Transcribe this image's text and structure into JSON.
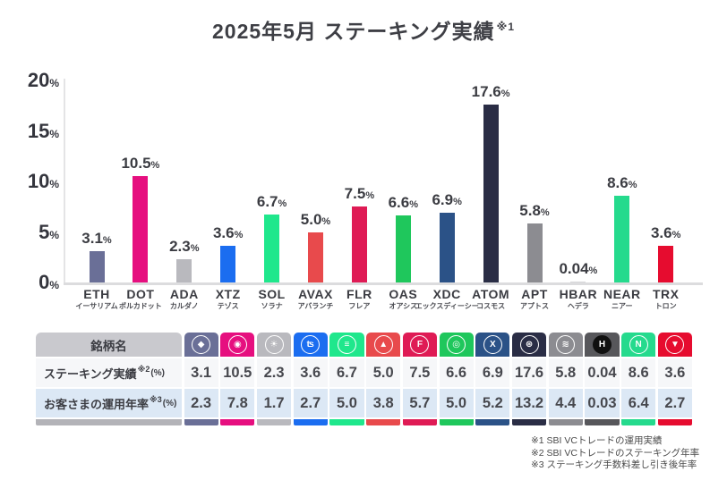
{
  "title": {
    "text": "2025年5月 ステーキング実績",
    "sup": "※1"
  },
  "chart_data": {
    "type": "bar",
    "title": "2025年5月 ステーキング実績※1",
    "unit": "%",
    "ylim": [
      0,
      20
    ],
    "yticks": [
      20,
      15,
      10,
      5,
      0
    ],
    "grid": false,
    "legend": "none",
    "categories": [
      "ETH",
      "DOT",
      "ADA",
      "XTZ",
      "SOL",
      "AVAX",
      "FLR",
      "OAS",
      "XDC",
      "ATOM",
      "APT",
      "HBAR",
      "NEAR",
      "TRX"
    ],
    "categories_ja": [
      "イーサリアム",
      "ポルカドット",
      "カルダノ",
      "テゾス",
      "ソラナ",
      "アバランチ",
      "フレア",
      "オアシス",
      "エックスディーシー",
      "コスモス",
      "アプトス",
      "ヘデラ",
      "ニアー",
      "トロン"
    ],
    "values": [
      3.1,
      10.5,
      2.3,
      3.6,
      6.7,
      5.0,
      7.5,
      6.6,
      6.9,
      17.6,
      5.8,
      0.04,
      8.6,
      3.6
    ],
    "value_labels": [
      "3.1",
      "10.5",
      "2.3",
      "3.6",
      "6.7",
      "5.0",
      "7.5",
      "6.6",
      "6.9",
      "17.6",
      "5.8",
      "0.04",
      "8.6",
      "3.6"
    ],
    "bar_colors": [
      "#6a6f97",
      "#e60f7f",
      "#b9b9be",
      "#1b6df0",
      "#1fe78c",
      "#e84a4c",
      "#df1b55",
      "#1fc75c",
      "#2b5287",
      "#2a2d45",
      "#8c8c91",
      "#d7d7d9",
      "#25da8d",
      "#e60c2f"
    ],
    "column_colors": [
      "#6a6f97",
      "#e60f7f",
      "#b9b9be",
      "#1b6df0",
      "#1fe78c",
      "#e84a4c",
      "#df1b55",
      "#1fc75c",
      "#2b5287",
      "#2a2d45",
      "#8c8c91",
      "#57575b",
      "#25da8d",
      "#e60c2f"
    ],
    "icons": [
      {
        "name": "eth-icon",
        "glyph": "◆",
        "filled": false
      },
      {
        "name": "dot-icon",
        "glyph": "◉",
        "filled": false
      },
      {
        "name": "ada-icon",
        "glyph": "☀",
        "filled": false
      },
      {
        "name": "xtz-icon",
        "glyph": "ʦ",
        "filled": false
      },
      {
        "name": "sol-icon",
        "glyph": "≡",
        "filled": false
      },
      {
        "name": "avax-icon",
        "glyph": "▲",
        "filled": false
      },
      {
        "name": "flr-icon",
        "glyph": "F",
        "filled": false
      },
      {
        "name": "oas-icon",
        "glyph": "◎",
        "filled": false
      },
      {
        "name": "xdc-icon",
        "glyph": "X",
        "filled": false
      },
      {
        "name": "atom-icon",
        "glyph": "⊛",
        "filled": false
      },
      {
        "name": "apt-icon",
        "glyph": "≋",
        "filled": false
      },
      {
        "name": "hbar-icon",
        "glyph": "H",
        "filled": true
      },
      {
        "name": "near-icon",
        "glyph": "N",
        "filled": false
      },
      {
        "name": "trx-icon",
        "glyph": "▼",
        "filled": false
      }
    ]
  },
  "table": {
    "name_header": "銘柄名",
    "label_stripe_color": "#b3b3b8",
    "rows": [
      {
        "label": "ステーキング実績",
        "sup": "※2",
        "suffix": "(%)",
        "values": [
          "3.1",
          "10.5",
          "2.3",
          "3.6",
          "6.7",
          "5.0",
          "7.5",
          "6.6",
          "6.9",
          "17.6",
          "5.8",
          "0.04",
          "8.6",
          "3.6"
        ]
      },
      {
        "label": "お客さまの運用年率",
        "sup": "※3",
        "suffix": "(%)",
        "values": [
          "2.3",
          "7.8",
          "1.7",
          "2.7",
          "5.0",
          "3.8",
          "5.7",
          "5.0",
          "5.2",
          "13.2",
          "4.4",
          "0.03",
          "6.4",
          "2.7"
        ]
      }
    ]
  },
  "footnotes": [
    "※1 SBI VCトレードの運用実績",
    "※2 SBI VCトレードのステーキング年率",
    "※3 ステーキング手数料差し引き後年率"
  ]
}
